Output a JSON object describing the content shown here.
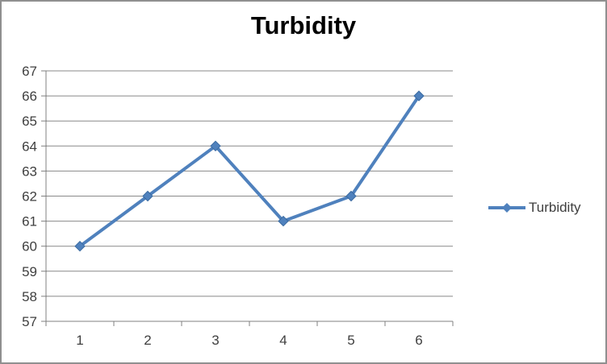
{
  "window": {
    "background": "#ffffff",
    "border_color": "#8f8f8f"
  },
  "colors": {
    "series_blue": "#4F81BD",
    "series_edge": "#3a6aa0",
    "gridline": "#898989",
    "axis": "#808080",
    "tick_text": "#3f3f3f",
    "title_text": "#000000"
  },
  "chart_data": {
    "type": "line",
    "title": "Turbidity",
    "categories": [
      "1",
      "2",
      "3",
      "4",
      "5",
      "6"
    ],
    "series": [
      {
        "name": "Turbidity",
        "values": [
          60,
          62,
          64,
          61,
          62,
          66
        ],
        "color": "#4F81BD",
        "marker": "diamond"
      }
    ],
    "xlabel": "",
    "ylabel": "",
    "ylim": [
      57,
      67
    ],
    "yticks": [
      57,
      58,
      59,
      60,
      61,
      62,
      63,
      64,
      65,
      66,
      67
    ],
    "grid": "horizontal-major",
    "legend_position": "right"
  }
}
